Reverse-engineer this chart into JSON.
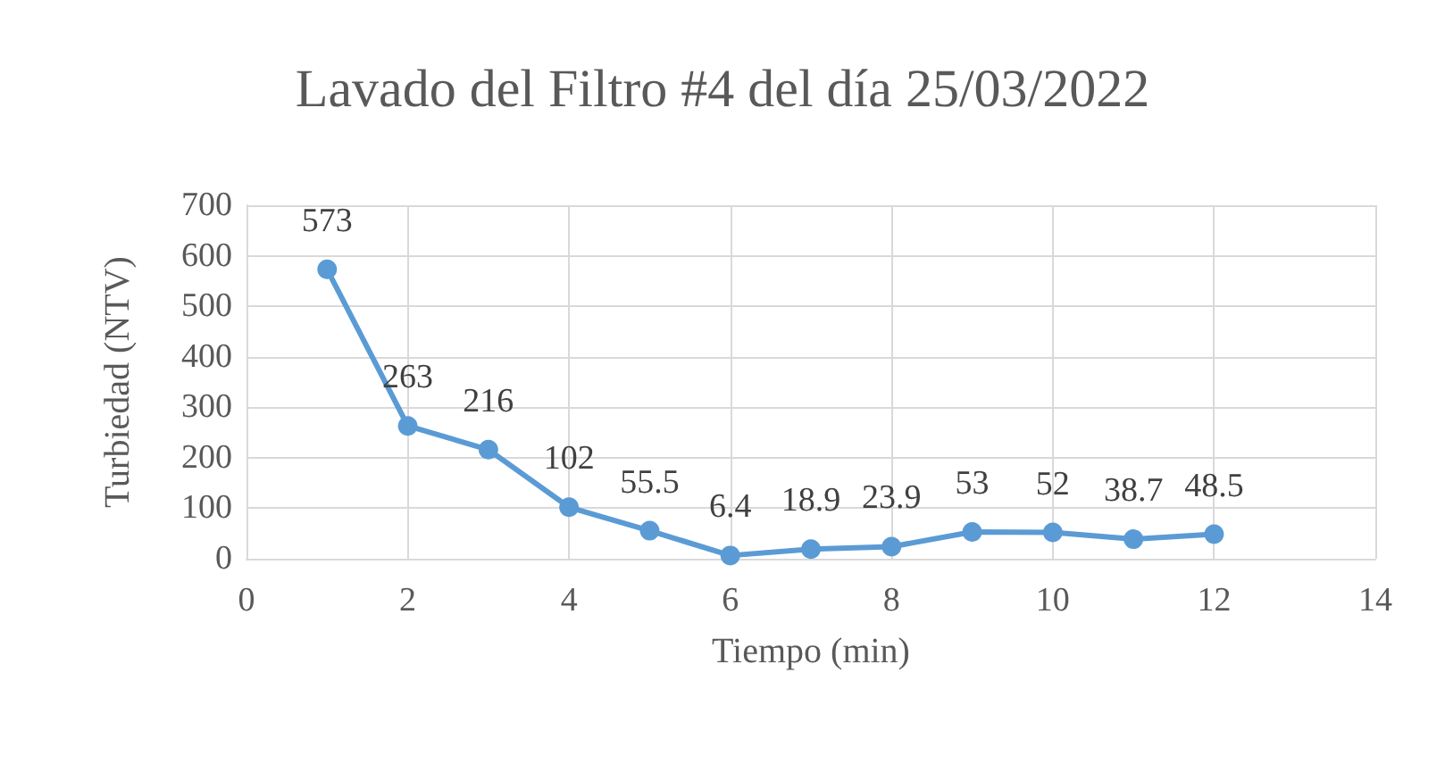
{
  "chart_data": {
    "type": "line",
    "title": "Lavado del Filtro #4 del día 25/03/2022",
    "xlabel": "Tiempo (min)",
    "ylabel": "Turbiedad (NTV)",
    "x": [
      1,
      2,
      3,
      4,
      5,
      6,
      7,
      8,
      9,
      10,
      11,
      12
    ],
    "series": [
      {
        "color": "#5b9bd5",
        "values": [
          573,
          263,
          216,
          102,
          55.5,
          6.4,
          18.9,
          23.9,
          53,
          52,
          38.7,
          48.5
        ]
      }
    ],
    "xlim": [
      0,
      14
    ],
    "xticks": [
      0,
      2,
      4,
      6,
      8,
      10,
      12,
      14
    ],
    "ylim": [
      0,
      700
    ],
    "yticks": [
      0,
      100,
      200,
      300,
      400,
      500,
      600,
      700
    ],
    "grid": true,
    "marker": "circle",
    "line_style": "solid",
    "data_labels": true
  }
}
